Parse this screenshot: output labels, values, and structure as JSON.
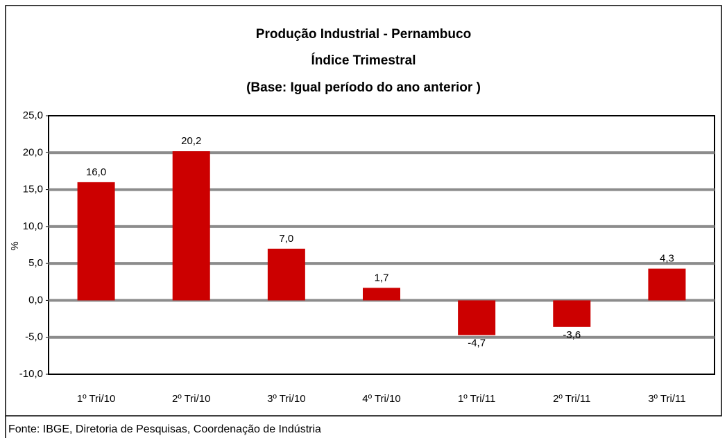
{
  "chart_data": {
    "type": "bar",
    "title": [
      "Produção Industrial - Pernambuco",
      "Índice Trimestral",
      "(Base: Igual período do ano anterior )"
    ],
    "ylabel": "%",
    "categories": [
      "1º Tri/10",
      "2º Tri/10",
      "3º Tri/10",
      "4º Tri/10",
      "1º Tri/11",
      "2º Tri/11",
      "3º Tri/11"
    ],
    "values": [
      16.0,
      20.2,
      7.0,
      1.7,
      -4.7,
      -3.6,
      4.3
    ],
    "value_labels": [
      "16,0",
      "20,2",
      "7,0",
      "1,7",
      "-4,7",
      "-3,6",
      "4,3"
    ],
    "color": "#cc0000",
    "ylim": [
      -10,
      25
    ],
    "yticks": [
      {
        "value": -10,
        "label": "-10,0"
      },
      {
        "value": -5,
        "label": "-5,0"
      },
      {
        "value": 0,
        "label": "0,0"
      },
      {
        "value": 5,
        "label": "5,0"
      },
      {
        "value": 10,
        "label": "10,0"
      },
      {
        "value": 15,
        "label": "15,0"
      },
      {
        "value": 20,
        "label": "20,0"
      },
      {
        "value": 25,
        "label": "25,0"
      }
    ],
    "grid": true,
    "source": "Fonte: IBGE, Diretoria de Pesquisas, Coordenação de Indústria"
  }
}
